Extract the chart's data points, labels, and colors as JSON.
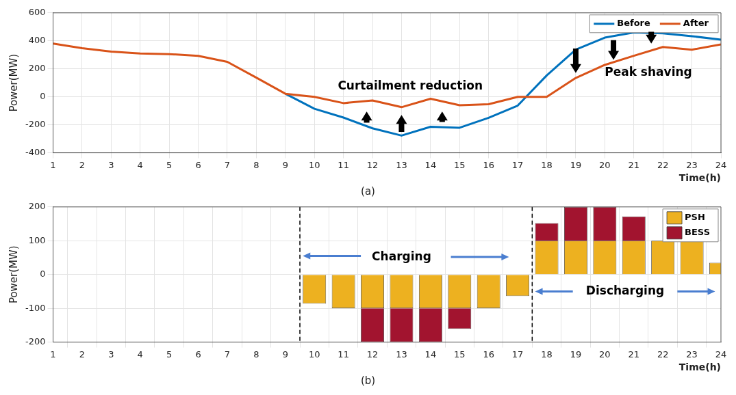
{
  "chart_data": [
    {
      "type": "line",
      "x": [
        1,
        2,
        3,
        4,
        5,
        6,
        7,
        8,
        9,
        10,
        11,
        12,
        13,
        14,
        15,
        16,
        17,
        18,
        19,
        20,
        21,
        22,
        23,
        24
      ],
      "series": [
        {
          "name": "Before",
          "color": "#0072bd",
          "values": [
            null,
            null,
            null,
            null,
            null,
            null,
            null,
            null,
            22,
            -85,
            -148,
            -225,
            -277,
            -214,
            -221,
            -150,
            -63,
            153,
            337,
            423,
            460,
            454,
            433,
            409
          ]
        },
        {
          "name": "After",
          "color": "#d95319",
          "values": [
            380,
            348,
            323,
            310,
            305,
            293,
            250,
            137,
            22,
            0,
            -45,
            -26,
            -74,
            -14,
            -60,
            -53,
            0,
            0,
            135,
            228,
            293,
            356,
            337,
            374
          ]
        }
      ],
      "xlim": [
        1,
        24
      ],
      "xticks": [
        1,
        2,
        3,
        4,
        5,
        6,
        7,
        8,
        9,
        10,
        11,
        12,
        13,
        14,
        15,
        16,
        17,
        18,
        19,
        20,
        21,
        22,
        23,
        24
      ],
      "ylim": [
        -400,
        600
      ],
      "yticks": [
        -400,
        -200,
        0,
        200,
        400,
        600
      ],
      "xlabel": "Time(h)",
      "ylabel": "Power(MW)",
      "grid": true,
      "legend": "top right",
      "marker": "none",
      "line_style": "solid",
      "annotations": [
        "Curtailment reduction",
        "Peak shaving",
        "(a)"
      ]
    },
    {
      "type": "bar",
      "stacked": true,
      "x": [
        10,
        11,
        12,
        13,
        14,
        15,
        16,
        17,
        18,
        19,
        20,
        21,
        22,
        23,
        24
      ],
      "series": [
        {
          "name": "PSH",
          "color": "#edb120",
          "values": [
            -86,
            -100,
            -100,
            -100,
            -100,
            -100,
            -100,
            -64,
            100,
            100,
            100,
            100,
            100,
            100,
            35
          ]
        },
        {
          "name": "BESS",
          "color": "#a2142f",
          "values": [
            null,
            null,
            -100,
            -100,
            -100,
            -61,
            null,
            null,
            52,
            100,
            100,
            72,
            null,
            null,
            null
          ]
        }
      ],
      "xlim": [
        1,
        24
      ],
      "xticks": [
        1,
        2,
        3,
        4,
        5,
        6,
        7,
        8,
        9,
        10,
        11,
        12,
        13,
        14,
        15,
        16,
        17,
        18,
        19,
        20,
        21,
        22,
        23,
        24
      ],
      "ylim": [
        -200,
        200
      ],
      "yticks": [
        -200,
        -100,
        0,
        100,
        200
      ],
      "xlabel": "Time(h)",
      "ylabel": "Power(MW)",
      "grid": true,
      "legend": "top right",
      "ref_lines": [
        {
          "axis": "x",
          "value": 9.5,
          "color": "#000000",
          "line_style": "dashed"
        },
        {
          "axis": "x",
          "value": 17.5,
          "color": "#000000",
          "line_style": "dashed"
        }
      ],
      "annotations": [
        "Charging",
        "Discharging",
        "(b)"
      ]
    }
  ]
}
